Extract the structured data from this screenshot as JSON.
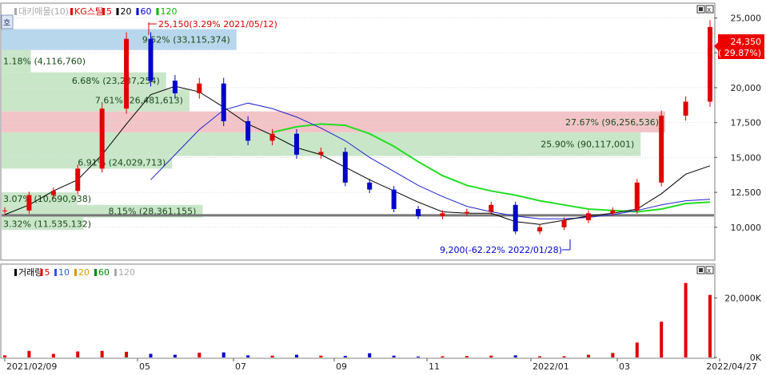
{
  "price_panel": {
    "legend": [
      {
        "label": "대키매물(10)",
        "color": "#aaaaaa"
      },
      {
        "label": "KG스틸",
        "color": "#dd0000"
      },
      {
        "label": "5",
        "color": "#dd0000"
      },
      {
        "label": "20",
        "color": "#000000"
      },
      {
        "label": "60",
        "color": "#0000cc"
      },
      {
        "label": "120",
        "color": "#00bb00"
      }
    ],
    "hoga_label": "호",
    "current_price": {
      "value": "24,350",
      "change": "( 29.87%)"
    },
    "high_annotation": "25,150(3.29% 2021/05/12)",
    "low_annotation": "9,200(-62.22% 2022/01/28)",
    "reference_line": 10850,
    "y_ticks": [
      "25,000",
      "22,500",
      "20,000",
      "17,500",
      "15,000",
      "12,500",
      "10,000"
    ],
    "colors": {
      "up": "#e00000",
      "down": "#0000cc",
      "ma5": "#dd0000",
      "ma20": "#000000",
      "ma60": "#2222cc",
      "ma120": "#22dd22",
      "volume_profile": "#c9e6c9",
      "volume_profile_blue": "#b9d7ec",
      "volume_profile_red": "#f2c4c8"
    }
  },
  "volume_profile": [
    {
      "label": "3.32% (11,535,132)",
      "price_low": 9800,
      "price_high": 10700,
      "length": 0.123,
      "color": "green"
    },
    {
      "label": "8.15% (28,361,155)",
      "price_low": 10700,
      "price_high": 11600,
      "length": 0.303,
      "color": "green"
    },
    {
      "label": "3.07% (10,690,938)",
      "price_low": 11600,
      "price_high": 12500,
      "length": 0.114,
      "color": "green"
    },
    {
      "label": "6.91% (24,029,713)",
      "price_low": 14200,
      "price_high": 15100,
      "length": 0.257,
      "color": "green"
    },
    {
      "label": "25.90% (90,117,001)",
      "price_low": 15100,
      "price_high": 16800,
      "length": 0.963,
      "color": "green"
    },
    {
      "label": "27.67% (96,256,536)",
      "price_low": 16800,
      "price_high": 18300,
      "length": 1.0,
      "color": "red"
    },
    {
      "label": "7.61% (26,481,613)",
      "price_low": 18300,
      "price_high": 19900,
      "length": 0.283,
      "color": "green"
    },
    {
      "label": "6.68% (23,237,254)",
      "price_low": 19900,
      "price_high": 21100,
      "length": 0.248,
      "color": "green"
    },
    {
      "label": "1.18% (4,116,760)",
      "price_low": 21100,
      "price_high": 22700,
      "length": 0.044,
      "color": "green"
    },
    {
      "label": "9.52% (33,115,374)",
      "price_low": 22700,
      "price_high": 24200,
      "length": 0.354,
      "color": "blue"
    }
  ],
  "volume_panel": {
    "legend": [
      {
        "label": "거래량",
        "color": "#000000"
      },
      {
        "label": "5",
        "color": "#dd0000"
      },
      {
        "label": "10",
        "color": "#3355dd"
      },
      {
        "label": "20",
        "color": "#dd9900"
      },
      {
        "label": "60",
        "color": "#008800"
      },
      {
        "label": "120",
        "color": "#aaaaaa"
      }
    ],
    "y_ticks": [
      "20,000K",
      "0K"
    ]
  },
  "x_axis": {
    "ticks": [
      "2021/02/09",
      "05",
      "07",
      "09",
      "11",
      "2022/01",
      "03",
      "2022/04/27"
    ]
  },
  "chart_data": {
    "type": "candlestick",
    "ylim": [
      7700,
      26000
    ],
    "x": [
      "2021/02/09",
      "2021/03/01",
      "2021/03/20",
      "2021/04/10",
      "2021/04/28",
      "2021/05/12",
      "2021/05/25",
      "2021/06/10",
      "2021/06/25",
      "2021/07/01",
      "2021/07/20",
      "2021/08/10",
      "2021/08/30",
      "2021/09/15",
      "2021/10/01",
      "2021/10/20",
      "2021/11/05",
      "2021/11/25",
      "2021/12/10",
      "2021/12/28",
      "2022/01/10",
      "2022/01/28",
      "2022/02/15",
      "2022/03/01",
      "2022/03/15",
      "2022/03/28",
      "2022/04/08",
      "2022/04/15",
      "2022/04/20",
      "2022/04/27"
    ],
    "close": [
      11200,
      12300,
      12600,
      14200,
      18500,
      23500,
      20500,
      19600,
      20300,
      17600,
      16200,
      16700,
      15200,
      15400,
      13200,
      12700,
      11300,
      10800,
      11000,
      11100,
      11600,
      9700,
      10000,
      10500,
      11000,
      11200,
      13200,
      18000,
      19000,
      24350
    ],
    "volume_k": [
      700,
      2200,
      1200,
      2000,
      2200,
      1900,
      1200,
      900,
      1600,
      1700,
      700,
      600,
      900,
      600,
      500,
      1400,
      600,
      300,
      400,
      500,
      600,
      700,
      400,
      400,
      900,
      1500,
      5000,
      12000,
      25000,
      21000
    ],
    "ma20_close": [
      10900,
      11600,
      12600,
      13400,
      15200,
      17400,
      19500,
      20100,
      19700,
      18600,
      17400,
      16600,
      15700,
      15200,
      14300,
      13400,
      12600,
      11800,
      11100,
      11000,
      11000,
      10400,
      10200,
      10500,
      10800,
      11000,
      11300,
      12400,
      13800,
      14400
    ],
    "ma60_start_index": 6,
    "ma60_close": [
      null,
      null,
      null,
      null,
      null,
      null,
      13400,
      15200,
      17000,
      18400,
      18900,
      18500,
      17900,
      17100,
      16200,
      15000,
      14000,
      13000,
      12200,
      11500,
      11100,
      10800,
      10600,
      10600,
      10700,
      10900,
      11200,
      11600,
      11900,
      12000
    ],
    "ma120_close": [
      null,
      null,
      null,
      null,
      null,
      null,
      null,
      null,
      null,
      null,
      null,
      16800,
      17200,
      17400,
      17300,
      16700,
      15800,
      14700,
      13700,
      13000,
      12600,
      12300,
      11900,
      11600,
      11300,
      11200,
      11100,
      11300,
      11700,
      11800
    ]
  }
}
